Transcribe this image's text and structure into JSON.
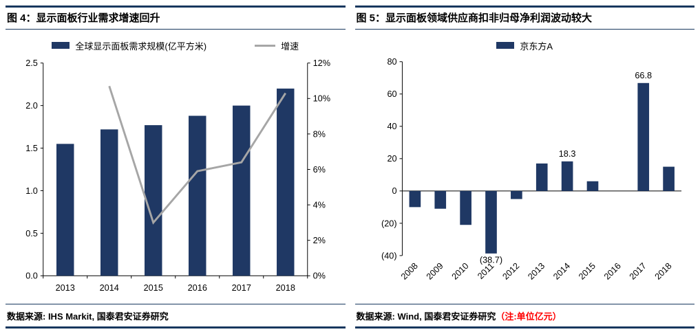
{
  "colors": {
    "navy": "#17375E",
    "bar": "#1F3864",
    "line": "#A6A6A6",
    "negative": "#FF0000",
    "text": "#000000"
  },
  "figures": [
    {
      "title": "图 4：显示面板行业需求增速回升",
      "source": "数据来源: IHS Markit, 国泰君安证券研究",
      "source_note": ""
    },
    {
      "title": "图 5：显示面板领域供应商扣非归母净利润波动较大",
      "source": "数据来源: Wind, 国泰君安证券研究",
      "source_note": "（注:单位亿元）"
    }
  ],
  "chart_data": [
    {
      "type": "bar",
      "subtype": "bar+line-combo",
      "title": "图 4：显示面板行业需求增速回升",
      "categories": [
        "2013",
        "2014",
        "2015",
        "2016",
        "2017",
        "2018"
      ],
      "series": [
        {
          "name": "全球显示面板需求规模(亿平方米)",
          "type": "bar",
          "axis": "left",
          "values": [
            1.55,
            1.72,
            1.77,
            1.88,
            2.0,
            2.2
          ]
        },
        {
          "name": "增速",
          "type": "line",
          "axis": "right",
          "values": [
            null,
            10.7,
            3.0,
            5.9,
            6.4,
            10.3
          ]
        }
      ],
      "y_left": {
        "min": 0,
        "max": 2.5,
        "ticks_top_to_bottom": [
          "2.5",
          "2.0",
          "1.5",
          "1.0",
          "0.5",
          "0.0"
        ]
      },
      "y_right": {
        "min": 0,
        "max": 12,
        "unit": "%",
        "ticks_top_to_bottom": [
          "12%",
          "10%",
          "8%",
          "6%",
          "4%",
          "2%",
          "0%"
        ]
      },
      "legend_position": "top",
      "grid": false
    },
    {
      "type": "bar",
      "title": "图 5：显示面板领域供应商扣非归母净利润波动较大",
      "categories": [
        "2008",
        "2009",
        "2010",
        "2011",
        "2012",
        "2013",
        "2014",
        "2015",
        "2016",
        "2017",
        "2018"
      ],
      "series": [
        {
          "name": "京东方A",
          "type": "bar",
          "values": [
            -10,
            -11,
            -21,
            -38.7,
            -5,
            17,
            18.3,
            6,
            0,
            66.8,
            15
          ]
        }
      ],
      "y": {
        "min": -40,
        "max": 80,
        "negative_format": "parentheses-red",
        "ticks_top_to_bottom": [
          "80",
          "60",
          "40",
          "20",
          "0",
          "(20)",
          "(40)"
        ]
      },
      "data_labels": [
        {
          "category": "2011",
          "text": "(38.7)",
          "color": "#FF0000",
          "position": "below"
        },
        {
          "category": "2014",
          "text": "18.3",
          "color": "#000000",
          "position": "above"
        },
        {
          "category": "2017",
          "text": "66.8",
          "color": "#000000",
          "position": "above"
        }
      ],
      "x_label_rotation": -45,
      "legend_position": "top",
      "grid": false
    }
  ]
}
